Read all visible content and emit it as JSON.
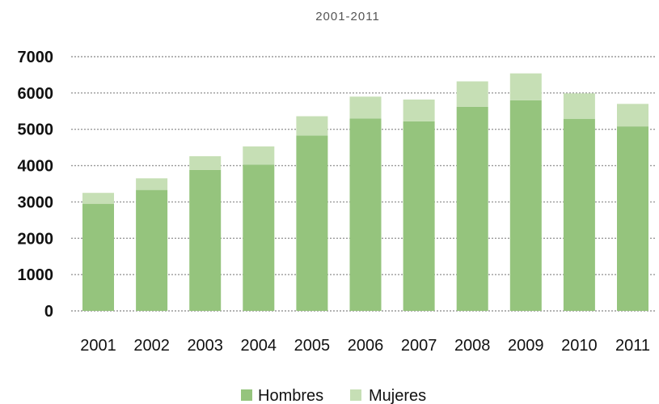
{
  "chart_data": {
    "type": "bar",
    "stacked": true,
    "title": "2001-2011",
    "xlabel": "",
    "ylabel": "",
    "categories": [
      "2001",
      "2002",
      "2003",
      "2004",
      "2005",
      "2006",
      "2007",
      "2008",
      "2009",
      "2010",
      "2011"
    ],
    "series": [
      {
        "name": "Hombres",
        "color": "#95c47d",
        "values": [
          2950,
          3330,
          3880,
          4030,
          4830,
          5300,
          5220,
          5620,
          5800,
          5290,
          5080
        ]
      },
      {
        "name": "Mujeres",
        "color": "#c6dfb5",
        "values": [
          300,
          320,
          380,
          500,
          530,
          600,
          600,
          700,
          740,
          700,
          620
        ]
      }
    ],
    "ylim": [
      0,
      7000
    ],
    "yticks": [
      "0",
      "1000",
      "2000",
      "3000",
      "4000",
      "5000",
      "6000",
      "7000"
    ],
    "grid": true,
    "legend_position": "bottom"
  }
}
